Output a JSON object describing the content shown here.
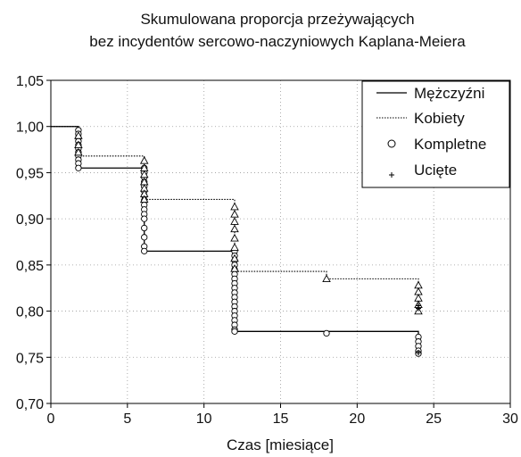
{
  "chart_data": {
    "type": "line",
    "title": "Skumulowana proporcja przeżywających",
    "subtitle": "bez incydentów sercowo-naczyniowych Kaplana-Meiera",
    "xlabel": "Czas [miesiące]",
    "ylabel": "",
    "xlim": [
      0,
      30
    ],
    "ylim": [
      0.7,
      1.05
    ],
    "x_ticks": [
      0,
      5,
      10,
      15,
      20,
      25,
      30
    ],
    "x_tick_labels": [
      "0",
      "5",
      "10",
      "15",
      "20",
      "25",
      "30"
    ],
    "y_ticks": [
      0.7,
      0.75,
      0.8,
      0.85,
      0.9,
      0.95,
      1.0,
      1.05
    ],
    "y_tick_labels": [
      "0,70",
      "0,75",
      "0,80",
      "0,85",
      "0,90",
      "0,95",
      "1,00",
      "1,05"
    ],
    "grid": true,
    "legend_position": "top-right",
    "legend": [
      "Mężczyźni",
      "Kobiety",
      "Kompletne",
      "Ucięte"
    ],
    "series": [
      {
        "name": "Mężczyźni",
        "line_style": "solid",
        "censor_marker": "circle",
        "steps": [
          [
            0,
            1.0
          ],
          [
            1.8,
            0.955
          ],
          [
            6.1,
            0.865
          ],
          [
            12.0,
            0.778
          ],
          [
            24.0,
            0.775
          ]
        ],
        "end_x": 24.0,
        "censored_times": [
          1.8,
          1.8,
          1.8,
          1.8,
          1.8,
          1.8,
          1.8,
          1.8,
          1.8,
          1.8,
          1.8,
          6.1,
          6.1,
          6.1,
          6.1,
          6.1,
          6.1,
          6.1,
          6.1,
          6.1,
          6.1,
          6.1,
          6.1,
          6.1,
          6.1,
          6.1,
          6.1,
          12.0,
          12.0,
          12.0,
          12.0,
          12.0,
          12.0,
          12.0,
          12.0,
          12.0,
          12.0,
          12.0,
          12.0,
          12.0,
          12.0,
          12.0,
          12.0,
          12.0,
          12.0,
          12.0,
          18.0,
          24.0,
          24.0,
          24.0,
          24.0,
          24.0
        ],
        "censored_values": [
          0.996,
          0.992,
          0.988,
          0.984,
          0.98,
          0.976,
          0.972,
          0.968,
          0.964,
          0.96,
          0.955,
          0.955,
          0.95,
          0.945,
          0.94,
          0.935,
          0.93,
          0.925,
          0.92,
          0.915,
          0.91,
          0.905,
          0.9,
          0.89,
          0.88,
          0.87,
          0.865,
          0.865,
          0.86,
          0.855,
          0.85,
          0.845,
          0.84,
          0.835,
          0.83,
          0.825,
          0.82,
          0.815,
          0.81,
          0.805,
          0.8,
          0.795,
          0.79,
          0.785,
          0.78,
          0.778,
          0.776,
          0.772,
          0.767,
          0.762,
          0.757,
          0.754
        ]
      },
      {
        "name": "Kobiety",
        "line_style": "dotted",
        "censor_marker": "triangle",
        "steps": [
          [
            0,
            1.0
          ],
          [
            1.8,
            0.968
          ],
          [
            6.1,
            0.921
          ],
          [
            12.0,
            0.843
          ],
          [
            18.0,
            0.835
          ],
          [
            24.0,
            0.828
          ]
        ],
        "end_x": 24.0,
        "censored_times": [
          1.8,
          1.8,
          1.8,
          6.1,
          6.1,
          6.1,
          6.1,
          6.1,
          6.1,
          6.1,
          12.0,
          12.0,
          12.0,
          12.0,
          12.0,
          12.0,
          12.0,
          12.0,
          18.0,
          24.0,
          24.0,
          24.0,
          24.0,
          24.0
        ],
        "censored_values": [
          0.99,
          0.98,
          0.972,
          0.963,
          0.955,
          0.948,
          0.94,
          0.933,
          0.927,
          0.921,
          0.913,
          0.905,
          0.897,
          0.889,
          0.879,
          0.869,
          0.857,
          0.846,
          0.835,
          0.828,
          0.821,
          0.814,
          0.807,
          0.8
        ]
      }
    ],
    "uciete_points": {
      "x": [
        24.0,
        24.0,
        24.0
      ],
      "y": [
        0.806,
        0.803,
        0.755
      ]
    }
  }
}
